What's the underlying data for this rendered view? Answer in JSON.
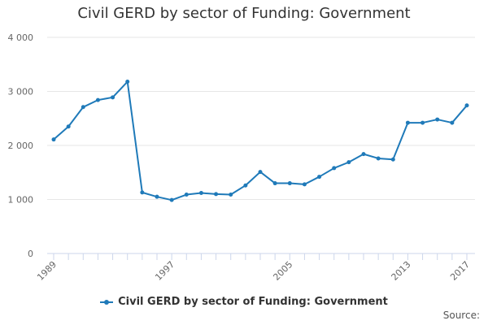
{
  "chart_data": {
    "type": "line",
    "title": "Civil GERD by sector of Funding: Government",
    "xlabel": "",
    "ylabel": "",
    "x": [
      1989,
      1990,
      1991,
      1992,
      1993,
      1994,
      1995,
      1996,
      1997,
      1998,
      1999,
      2000,
      2001,
      2002,
      2003,
      2004,
      2005,
      2006,
      2007,
      2008,
      2009,
      2010,
      2011,
      2012,
      2013,
      2014,
      2015,
      2016,
      2017
    ],
    "xticks": [
      1989,
      1997,
      2005,
      2013,
      2017
    ],
    "ylim": [
      0,
      4000
    ],
    "yticks": [
      0,
      1000,
      2000,
      3000,
      4000
    ],
    "ytick_labels": [
      "0",
      "1 000",
      "2 000",
      "3 000",
      "4 000"
    ],
    "grid": true,
    "legend_position": "bottom",
    "series": [
      {
        "name": "Civil GERD by sector of Funding: Government",
        "color": "#1f7ab9",
        "values": [
          2110,
          2350,
          2710,
          2840,
          2890,
          3180,
          1130,
          1050,
          990,
          1090,
          1120,
          1100,
          1090,
          1260,
          1510,
          1300,
          1300,
          1280,
          1420,
          1580,
          1690,
          1840,
          1760,
          1740,
          2420,
          2420,
          2480,
          2420,
          2740
        ]
      }
    ]
  },
  "credits": "Source:"
}
